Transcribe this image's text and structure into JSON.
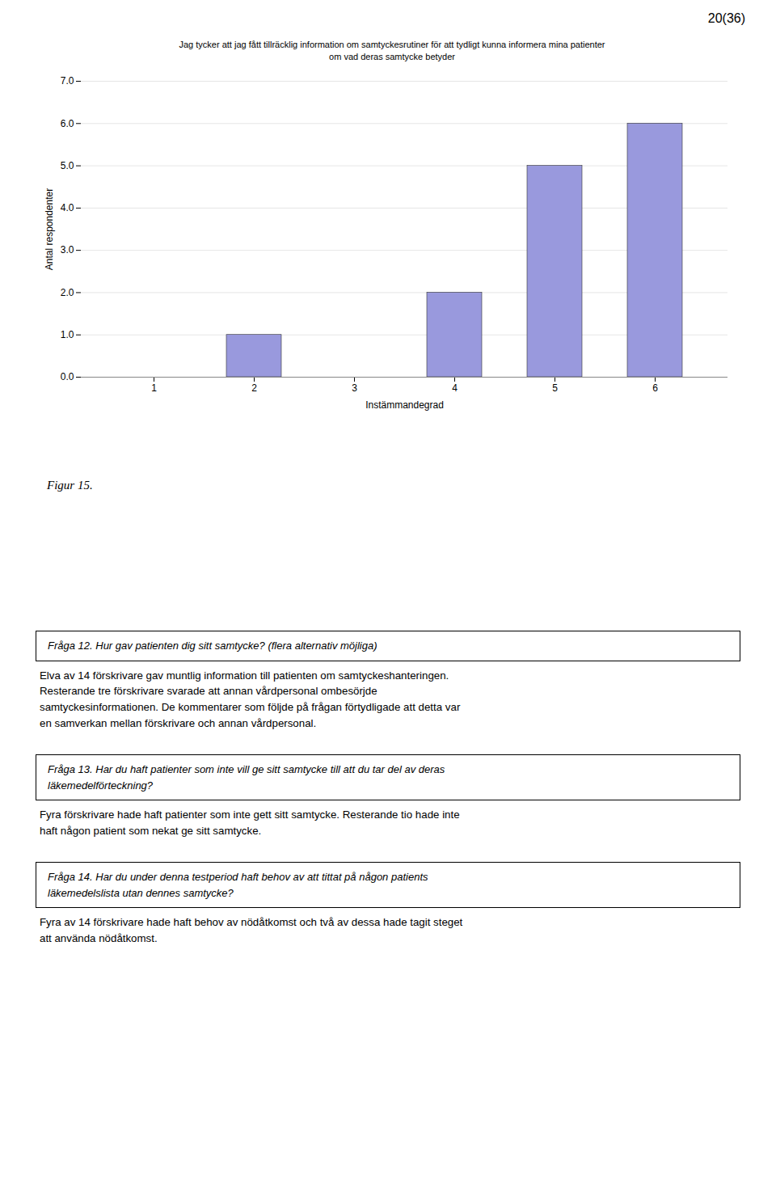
{
  "page_number": "20(36)",
  "figure_label": "Figur 15.",
  "chart_data": {
    "type": "bar",
    "title": "Jag tycker att jag fått tillräcklig information om samtyckesrutiner för att tydligt kunna informera mina patienter\nom vad deras samtycke betyder",
    "categories": [
      1,
      2,
      3,
      4,
      5,
      6
    ],
    "values": [
      0,
      1,
      0,
      2,
      5,
      6
    ],
    "color": "#9999dd",
    "xlabel": "Instämmandegrad",
    "ylabel": "Antal respondenter",
    "ylim": [
      0,
      7
    ],
    "yticks": [
      0,
      1,
      2,
      3,
      4,
      5,
      6,
      7
    ],
    "grid": true
  },
  "text_boxes": [
    {
      "title": "Fråga 12. Hur gav patienten dig sitt samtycke? (flera alternativ möjliga)",
      "body": "Elva av 14 förskrivare gav muntlig information till patienten om samtyckeshanteringen.\nResterande tre förskrivare svarade att annan vårdpersonal ombesörjde\nsamtyckesinformationen. De kommentarer som följde på frågan förtydligade att detta var\nen samverkan mellan förskrivare och annan vårdpersonal."
    },
    {
      "title": "Fråga 13. Har du haft patienter som inte vill ge sitt samtycke till att du tar del av deras\nläkemedelförteckning?",
      "body": "Fyra förskrivare hade haft patienter som inte gett sitt samtycke. Resterande tio hade inte\nhaft någon patient som nekat ge sitt samtycke."
    },
    {
      "title": "Fråga 14. Har du under denna testperiod haft behov av att tittat på någon patients\nläkemedelslista utan dennes samtycke?",
      "body": "Fyra av 14 förskrivare hade haft behov av nödåtkomst och två av dessa hade tagit steget\natt använda nödåtkomst."
    }
  ]
}
